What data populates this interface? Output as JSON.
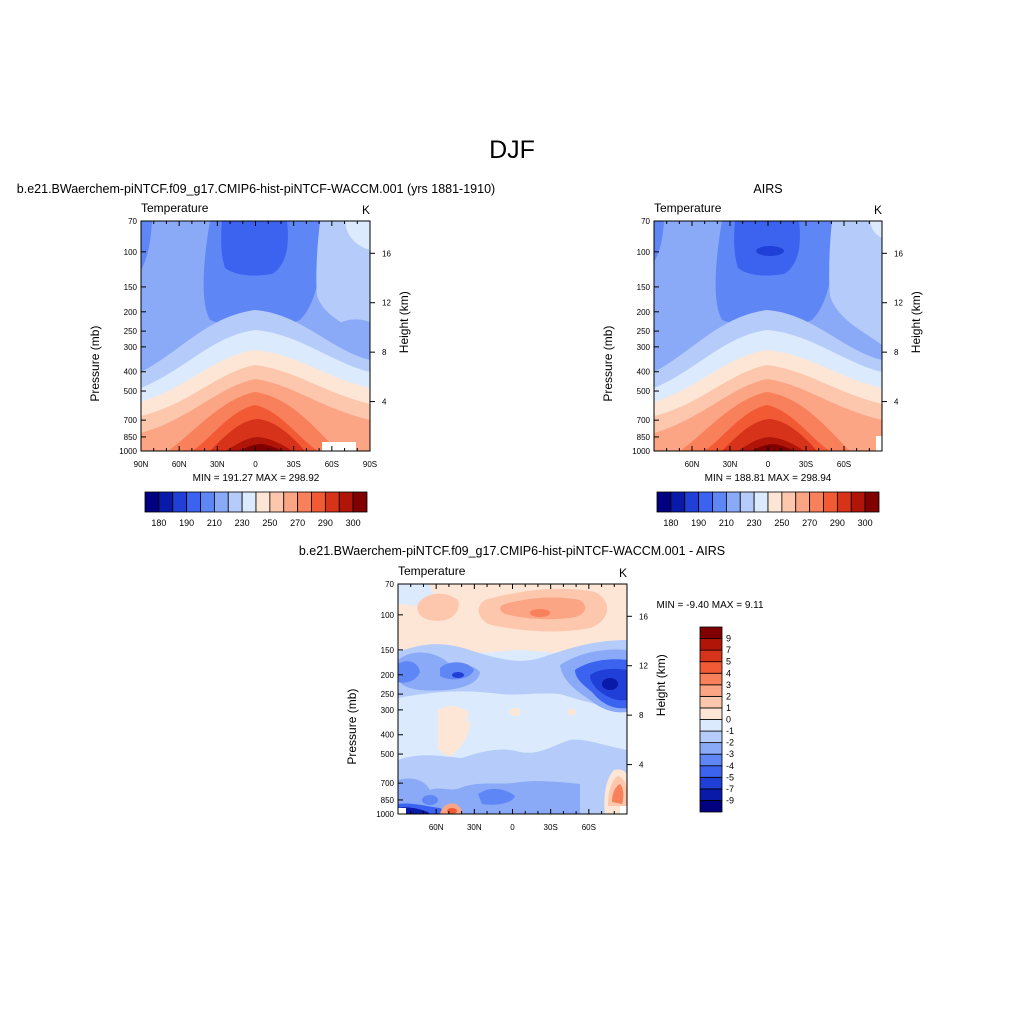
{
  "page_title": "DJF",
  "chart_data": [
    {
      "type": "heatmap",
      "id": "model",
      "title": "b.e21.BWaerchem-piNTCF.f09_g17.CMIP6-hist-piNTCF-WACCM.001 (yrs 1881-1910)",
      "variable": "Temperature",
      "units": "K",
      "ylabel": "Pressure (mb)",
      "ylabel_right": "Height (km)",
      "x_ticks": [
        "90N",
        "60N",
        "30N",
        "0",
        "30S",
        "60S",
        "90S"
      ],
      "x_tick_values": [
        90,
        60,
        30,
        0,
        -30,
        -60,
        -90
      ],
      "xlim": [
        90,
        -90
      ],
      "y_ticks": [
        "70",
        "100",
        "150",
        "200",
        "250",
        "300",
        "400",
        "500",
        "700",
        "850",
        "1000"
      ],
      "y_tick_values": [
        70,
        100,
        150,
        200,
        250,
        300,
        400,
        500,
        700,
        850,
        1000
      ],
      "ylim": [
        1000,
        70
      ],
      "y_scale": "log",
      "height_ticks": [
        "4",
        "8",
        "12",
        "16"
      ],
      "height_tick_values": [
        4,
        8,
        12,
        16
      ],
      "stats": "MIN = 191.27  MAX = 298.92",
      "levels": [
        180,
        185,
        190,
        200,
        210,
        220,
        230,
        240,
        250,
        260,
        270,
        280,
        290,
        295,
        300
      ],
      "colorbar_labels": [
        "180",
        "190",
        "210",
        "230",
        "250",
        "270",
        "290",
        "300"
      ],
      "colorbar_label_positions": [
        1,
        3,
        5,
        7,
        9,
        11,
        13,
        15
      ],
      "colors": [
        "#000080",
        "#0a1aa8",
        "#1f3fd6",
        "#3c63ef",
        "#5f86f5",
        "#8aaaf8",
        "#b5ccfa",
        "#dceafd",
        "#fde6d6",
        "#fcc7ad",
        "#fba584",
        "#f8805b",
        "#f25a35",
        "#d7321a",
        "#b01508",
        "#800000"
      ]
    },
    {
      "type": "heatmap",
      "id": "obs",
      "title": "AIRS",
      "variable": "Temperature",
      "units": "K",
      "ylabel": "Pressure (mb)",
      "ylabel_right": "Height (km)",
      "x_ticks": [
        "60N",
        "30N",
        "0",
        "30S",
        "60S"
      ],
      "x_tick_values": [
        60,
        30,
        0,
        -30,
        -60
      ],
      "xlim": [
        90,
        -90
      ],
      "y_ticks": [
        "70",
        "100",
        "150",
        "200",
        "250",
        "300",
        "400",
        "500",
        "700",
        "850",
        "1000"
      ],
      "y_tick_values": [
        70,
        100,
        150,
        200,
        250,
        300,
        400,
        500,
        700,
        850,
        1000
      ],
      "ylim": [
        1000,
        70
      ],
      "y_scale": "log",
      "height_ticks": [
        "4",
        "8",
        "12",
        "16"
      ],
      "height_tick_values": [
        4,
        8,
        12,
        16
      ],
      "stats": "MIN = 188.81  MAX = 298.94",
      "levels": [
        180,
        185,
        190,
        200,
        210,
        220,
        230,
        240,
        250,
        260,
        270,
        280,
        290,
        295,
        300
      ],
      "colorbar_labels": [
        "180",
        "190",
        "210",
        "230",
        "250",
        "270",
        "290",
        "300"
      ],
      "colorbar_label_positions": [
        1,
        3,
        5,
        7,
        9,
        11,
        13,
        15
      ],
      "colors": [
        "#000080",
        "#0a1aa8",
        "#1f3fd6",
        "#3c63ef",
        "#5f86f5",
        "#8aaaf8",
        "#b5ccfa",
        "#dceafd",
        "#fde6d6",
        "#fcc7ad",
        "#fba584",
        "#f8805b",
        "#f25a35",
        "#d7321a",
        "#b01508",
        "#800000"
      ]
    },
    {
      "type": "heatmap",
      "id": "diff",
      "title": "b.e21.BWaerchem-piNTCF.f09_g17.CMIP6-hist-piNTCF-WACCM.001 - AIRS",
      "variable": "Temperature",
      "units": "K",
      "ylabel": "Pressure (mb)",
      "ylabel_right": "Height (km)",
      "x_ticks": [
        "60N",
        "30N",
        "0",
        "30S",
        "60S"
      ],
      "x_tick_values": [
        60,
        30,
        0,
        -30,
        -60
      ],
      "xlim": [
        90,
        -90
      ],
      "y_ticks": [
        "70",
        "100",
        "150",
        "200",
        "250",
        "300",
        "400",
        "500",
        "700",
        "850",
        "1000"
      ],
      "y_tick_values": [
        70,
        100,
        150,
        200,
        250,
        300,
        400,
        500,
        700,
        850,
        1000
      ],
      "ylim": [
        1000,
        70
      ],
      "y_scale": "log",
      "height_ticks": [
        "4",
        "8",
        "12",
        "16"
      ],
      "height_tick_values": [
        4,
        8,
        12,
        16
      ],
      "stats": "MIN =  -9.40  MAX =   9.11",
      "levels": [
        -9,
        -7,
        -5,
        -4,
        -3,
        -2,
        -1,
        0,
        1,
        2,
        3,
        4,
        5,
        7,
        9
      ],
      "colorbar_labels": [
        "9",
        "7",
        "5",
        "4",
        "3",
        "2",
        "1",
        "0",
        "-1",
        "-2",
        "-3",
        "-4",
        "-5",
        "-7",
        "-9"
      ],
      "colors": [
        "#000080",
        "#0a1aa8",
        "#1f3fd6",
        "#3c63ef",
        "#5f86f5",
        "#8aaaf8",
        "#b5ccfa",
        "#dceafd",
        "#fde6d6",
        "#fcc7ad",
        "#fba584",
        "#f8805b",
        "#f25a35",
        "#d7321a",
        "#b01508",
        "#800000"
      ]
    }
  ]
}
